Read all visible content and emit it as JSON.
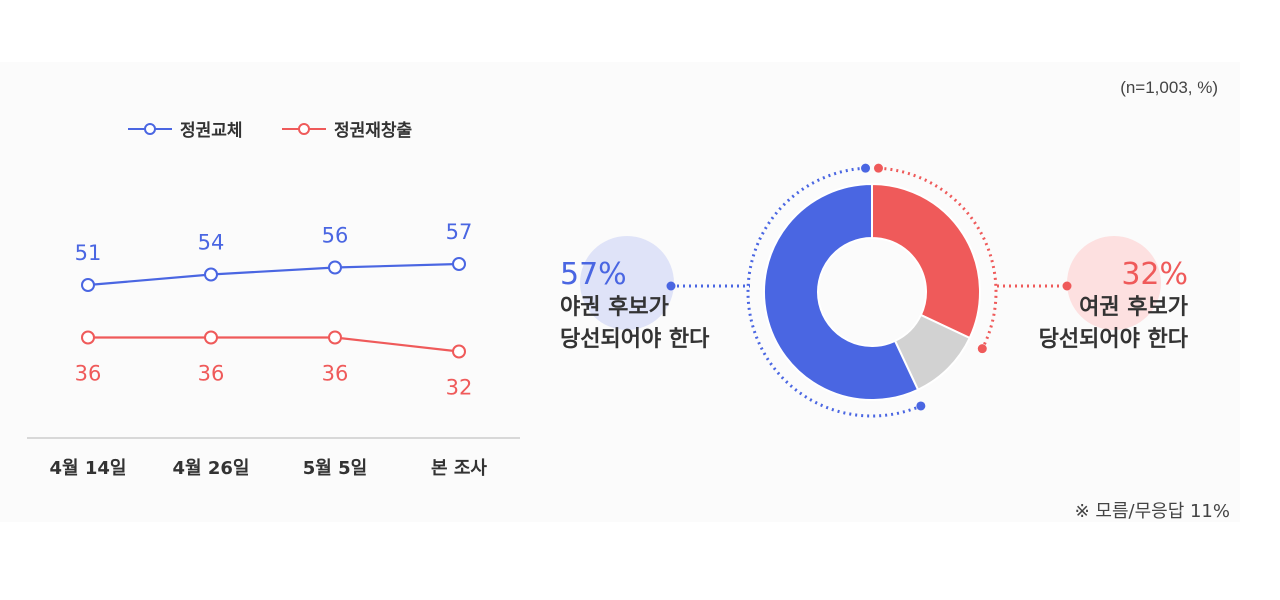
{
  "sample_note": "(n=1,003, %)",
  "footnote": "※ 모름/무응답 11%",
  "colors": {
    "blue": "#4a66e2",
    "red": "#ef5a5a",
    "gray": "#d2d2d2",
    "blue_bubble": "#dfe3f8",
    "red_bubble": "#fde0e0"
  },
  "chart_data": [
    {
      "type": "line",
      "categories": [
        "4월 14일",
        "4월 26일",
        "5월 5일",
        "본 조사"
      ],
      "series": [
        {
          "name": "정권교체",
          "values": [
            51,
            54,
            56,
            57
          ]
        },
        {
          "name": "정권재창출",
          "values": [
            36,
            36,
            36,
            32
          ]
        }
      ],
      "legend_position": "top"
    },
    {
      "type": "pie",
      "labels": [
        "야권 후보가 당선되어야 한다",
        "여권 후보가 당선되어야 한다",
        "모름/무응답"
      ],
      "values": [
        57,
        32,
        11
      ],
      "left_label": {
        "pct": "57%",
        "line1": "야권 후보가",
        "line2": "당선되어야 한다"
      },
      "right_label": {
        "pct": "32%",
        "line1": "여권 후보가",
        "line2": "당선되어야 한다"
      }
    }
  ]
}
